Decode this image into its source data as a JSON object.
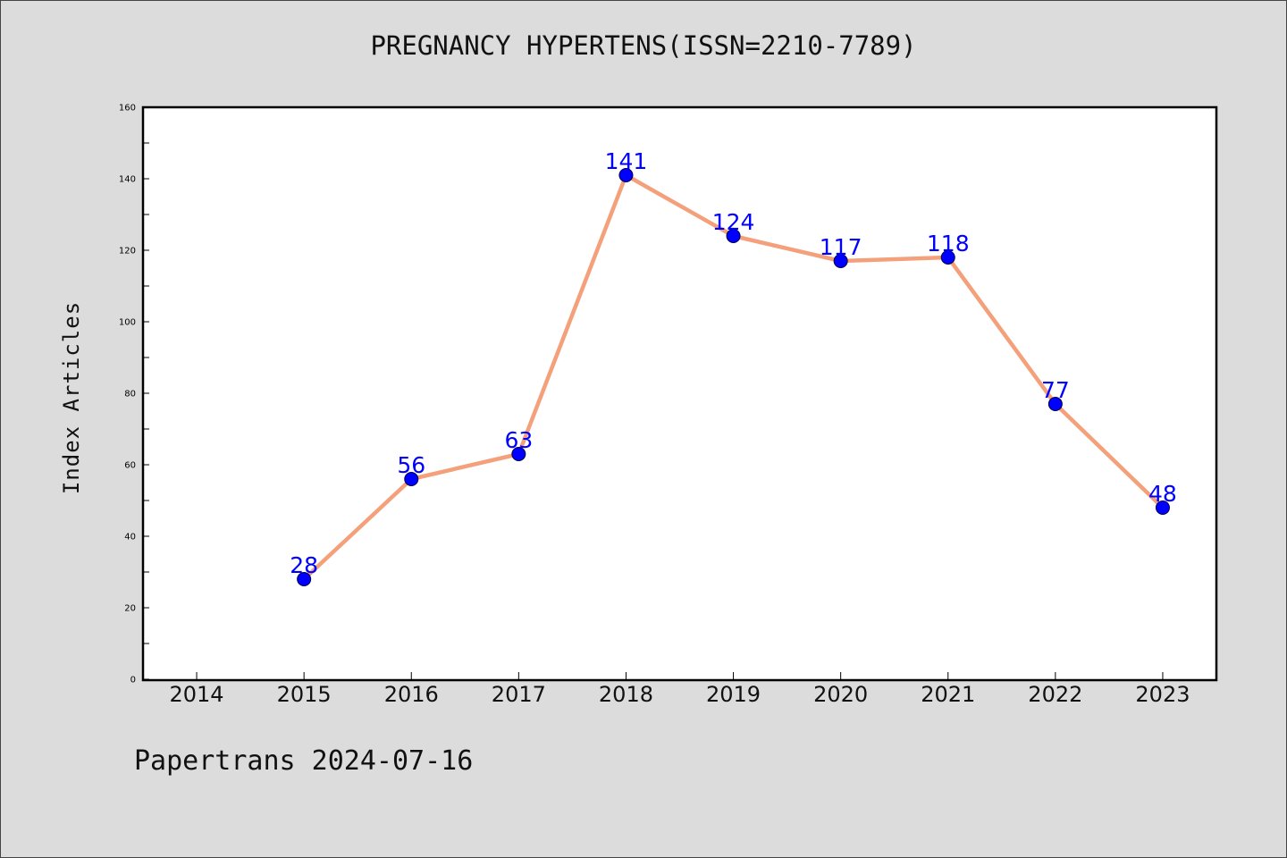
{
  "chart_data": {
    "type": "line",
    "title": "PREGNANCY HYPERTENS(ISSN=2210-7789)",
    "xlabel": "",
    "ylabel": "Index Articles",
    "footer": "Papertrans 2024-07-16",
    "x_ticks": [
      "2014",
      "2015",
      "2016",
      "2017",
      "2018",
      "2019",
      "2020",
      "2021",
      "2022",
      "2023"
    ],
    "y_ticks": [
      "0",
      "20",
      "40",
      "60",
      "80",
      "100",
      "120",
      "140",
      "160"
    ],
    "ylim": [
      0,
      160
    ],
    "xlim": [
      2013.5,
      2023.5
    ],
    "grid": false,
    "series": [
      {
        "x": [
          2015,
          2016,
          2017,
          2018,
          2019,
          2020,
          2021,
          2022,
          2023
        ],
        "values": [
          28,
          56,
          63,
          141,
          124,
          117,
          118,
          77,
          48
        ],
        "labels": [
          "28",
          "56",
          "63",
          "141",
          "124",
          "117",
          "118",
          "77",
          "48"
        ],
        "line_color": "#f4a07a",
        "marker_color": "#0000ff"
      }
    ]
  }
}
